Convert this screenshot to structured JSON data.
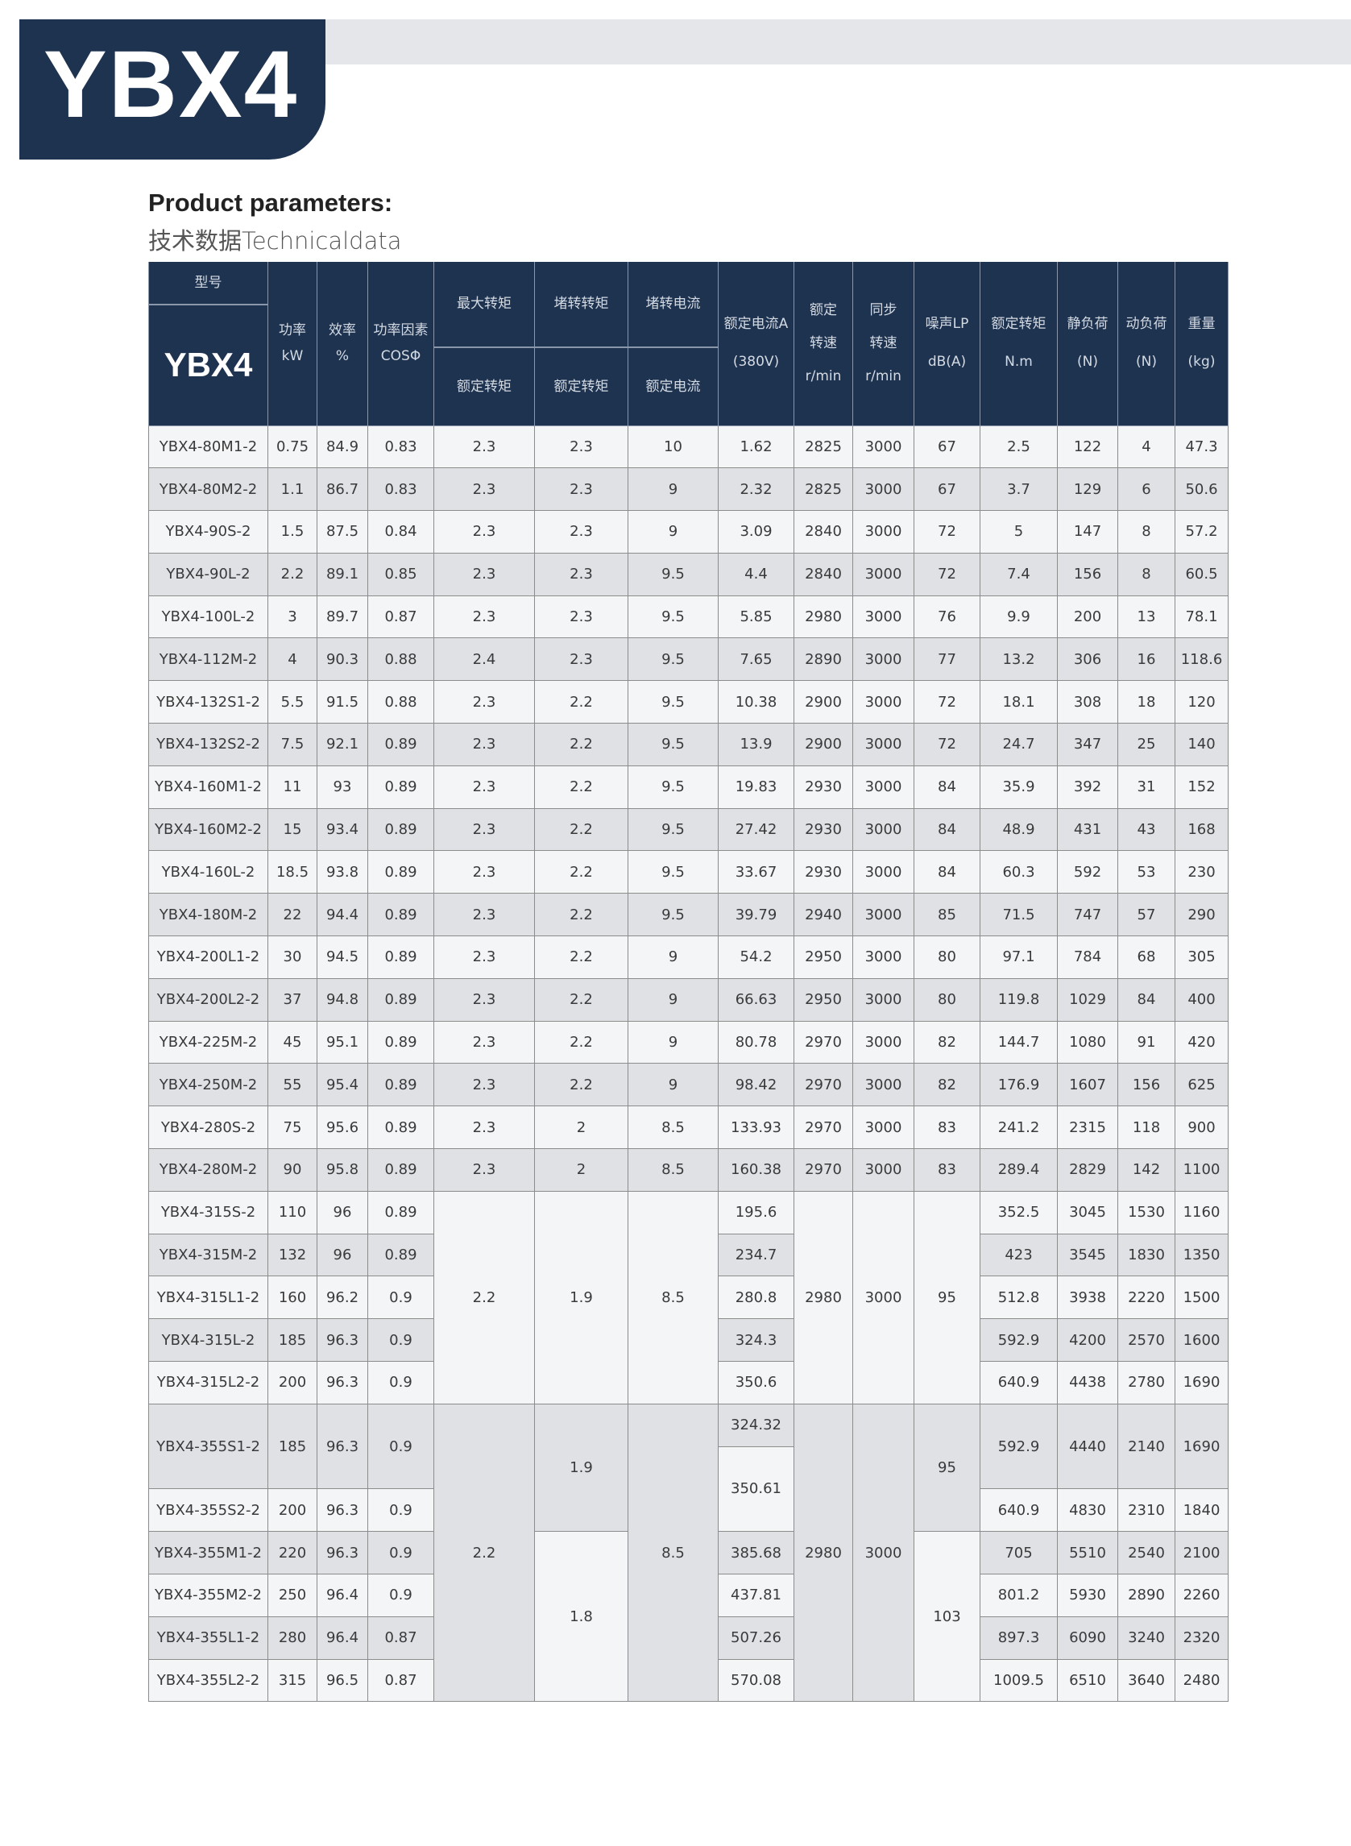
{
  "title": "YBX4",
  "subtitle_en": "Product parameters:",
  "subtitle_cn": "技术数据Technicaldata",
  "colors": {
    "navy": "#1e3350",
    "band": "#e4e6ea",
    "row_light": "#f4f5f7",
    "row_dark": "#dfe1e5"
  },
  "table": {
    "header": {
      "model": "型号",
      "model_big": "YBX4",
      "power": "功率\nkW",
      "efficiency": "效率\n%",
      "power_factor": "功率因素\nCOSΦ",
      "max_torque_top": "最大转矩",
      "max_torque_bottom": "额定转矩",
      "locked_torque_top": "堵转转矩",
      "locked_torque_bottom": "额定转矩",
      "locked_current_top": "堵转电流",
      "locked_current_bottom": "额定电流",
      "rated_current": "额定电流A\n\n(380V)",
      "rated_speed": "额定\n\n转速\n\nr/min",
      "sync_speed": "同步\n\n转速\n\nr/min",
      "noise": "噪声LP\n\ndB(A)",
      "rated_torque": "额定转矩\n\nN.m",
      "static_load": "静负荷\n\n(N)",
      "dynamic_load": "动负荷\n\n(N)",
      "weight": "重量\n\n(kg)"
    },
    "rows": [
      [
        "YBX4-80M1-2",
        "0.75",
        "84.9",
        "0.83",
        "2.3",
        "2.3",
        "10",
        "1.62",
        "2825",
        "3000",
        "67",
        "2.5",
        "122",
        "4",
        "47.3"
      ],
      [
        "YBX4-80M2-2",
        "1.1",
        "86.7",
        "0.83",
        "2.3",
        "2.3",
        "9",
        "2.32",
        "2825",
        "3000",
        "67",
        "3.7",
        "129",
        "6",
        "50.6"
      ],
      [
        "YBX4-90S-2",
        "1.5",
        "87.5",
        "0.84",
        "2.3",
        "2.3",
        "9",
        "3.09",
        "2840",
        "3000",
        "72",
        "5",
        "147",
        "8",
        "57.2"
      ],
      [
        "YBX4-90L-2",
        "2.2",
        "89.1",
        "0.85",
        "2.3",
        "2.3",
        "9.5",
        "4.4",
        "2840",
        "3000",
        "72",
        "7.4",
        "156",
        "8",
        "60.5"
      ],
      [
        "YBX4-100L-2",
        "3",
        "89.7",
        "0.87",
        "2.3",
        "2.3",
        "9.5",
        "5.85",
        "2980",
        "3000",
        "76",
        "9.9",
        "200",
        "13",
        "78.1"
      ],
      [
        "YBX4-112M-2",
        "4",
        "90.3",
        "0.88",
        "2.4",
        "2.3",
        "9.5",
        "7.65",
        "2890",
        "3000",
        "77",
        "13.2",
        "306",
        "16",
        "118.6"
      ],
      [
        "YBX4-132S1-2",
        "5.5",
        "91.5",
        "0.88",
        "2.3",
        "2.2",
        "9.5",
        "10.38",
        "2900",
        "3000",
        "72",
        "18.1",
        "308",
        "18",
        "120"
      ],
      [
        "YBX4-132S2-2",
        "7.5",
        "92.1",
        "0.89",
        "2.3",
        "2.2",
        "9.5",
        "13.9",
        "2900",
        "3000",
        "72",
        "24.7",
        "347",
        "25",
        "140"
      ],
      [
        "YBX4-160M1-2",
        "11",
        "93",
        "0.89",
        "2.3",
        "2.2",
        "9.5",
        "19.83",
        "2930",
        "3000",
        "84",
        "35.9",
        "392",
        "31",
        "152"
      ],
      [
        "YBX4-160M2-2",
        "15",
        "93.4",
        "0.89",
        "2.3",
        "2.2",
        "9.5",
        "27.42",
        "2930",
        "3000",
        "84",
        "48.9",
        "431",
        "43",
        "168"
      ],
      [
        "YBX4-160L-2",
        "18.5",
        "93.8",
        "0.89",
        "2.3",
        "2.2",
        "9.5",
        "33.67",
        "2930",
        "3000",
        "84",
        "60.3",
        "592",
        "53",
        "230"
      ],
      [
        "YBX4-180M-2",
        "22",
        "94.4",
        "0.89",
        "2.3",
        "2.2",
        "9.5",
        "39.79",
        "2940",
        "3000",
        "85",
        "71.5",
        "747",
        "57",
        "290"
      ],
      [
        "YBX4-200L1-2",
        "30",
        "94.5",
        "0.89",
        "2.3",
        "2.2",
        "9",
        "54.2",
        "2950",
        "3000",
        "80",
        "97.1",
        "784",
        "68",
        "305"
      ],
      [
        "YBX4-200L2-2",
        "37",
        "94.8",
        "0.89",
        "2.3",
        "2.2",
        "9",
        "66.63",
        "2950",
        "3000",
        "80",
        "119.8",
        "1029",
        "84",
        "400"
      ],
      [
        "YBX4-225M-2",
        "45",
        "95.1",
        "0.89",
        "2.3",
        "2.2",
        "9",
        "80.78",
        "2970",
        "3000",
        "82",
        "144.7",
        "1080",
        "91",
        "420"
      ],
      [
        "YBX4-250M-2",
        "55",
        "95.4",
        "0.89",
        "2.3",
        "2.2",
        "9",
        "98.42",
        "2970",
        "3000",
        "82",
        "176.9",
        "1607",
        "156",
        "625"
      ],
      [
        "YBX4-280S-2",
        "75",
        "95.6",
        "0.89",
        "2.3",
        "2",
        "8.5",
        "133.93",
        "2970",
        "3000",
        "83",
        "241.2",
        "2315",
        "118",
        "900"
      ],
      [
        "YBX4-280M-2",
        "90",
        "95.8",
        "0.89",
        "2.3",
        "2",
        "8.5",
        "160.38",
        "2970",
        "3000",
        "83",
        "289.4",
        "2829",
        "142",
        "1100"
      ]
    ],
    "group_315": {
      "max_torque": "2.2",
      "locked_torque": "1.9",
      "locked_current": "8.5",
      "rated_speed": "2980",
      "sync_speed": "3000",
      "noise": "95",
      "rows": [
        [
          "YBX4-315S-2",
          "110",
          "96",
          "0.89",
          "195.6",
          "352.5",
          "3045",
          "1530",
          "1160"
        ],
        [
          "YBX4-315M-2",
          "132",
          "96",
          "0.89",
          "234.7",
          "423",
          "3545",
          "1830",
          "1350"
        ],
        [
          "YBX4-315L1-2",
          "160",
          "96.2",
          "0.9",
          "280.8",
          "512.8",
          "3938",
          "2220",
          "1500"
        ],
        [
          "YBX4-315L-2",
          "185",
          "96.3",
          "0.9",
          "324.3",
          "592.9",
          "4200",
          "2570",
          "1600"
        ],
        [
          "YBX4-315L2-2",
          "200",
          "96.3",
          "0.9",
          "350.6",
          "640.9",
          "4438",
          "2780",
          "1690"
        ]
      ]
    },
    "group_355": {
      "max_torque": "2.2",
      "locked_current": "8.5",
      "rated_speed": "2980",
      "sync_speed": "3000",
      "locked_torque": [
        "1.9",
        "1.8"
      ],
      "noise": [
        "95",
        "103"
      ],
      "currents": [
        "324.32",
        "350.61",
        "385.68",
        "437.81",
        "507.26",
        "570.08"
      ],
      "rows": [
        [
          "YBX4-355S1-2",
          "185",
          "96.3",
          "0.9",
          "592.9",
          "4440",
          "2140",
          "1690"
        ],
        [
          "YBX4-355S2-2",
          "200",
          "96.3",
          "0.9",
          "640.9",
          "4830",
          "2310",
          "1840"
        ],
        [
          "YBX4-355M1-2",
          "220",
          "96.3",
          "0.9",
          "705",
          "5510",
          "2540",
          "2100"
        ],
        [
          "YBX4-355M2-2",
          "250",
          "96.4",
          "0.9",
          "801.2",
          "5930",
          "2890",
          "2260"
        ],
        [
          "YBX4-355L1-2",
          "280",
          "96.4",
          "0.87",
          "897.3",
          "6090",
          "3240",
          "2320"
        ],
        [
          "YBX4-355L2-2",
          "315",
          "96.5",
          "0.87",
          "1009.5",
          "6510",
          "3640",
          "2480"
        ]
      ]
    }
  }
}
